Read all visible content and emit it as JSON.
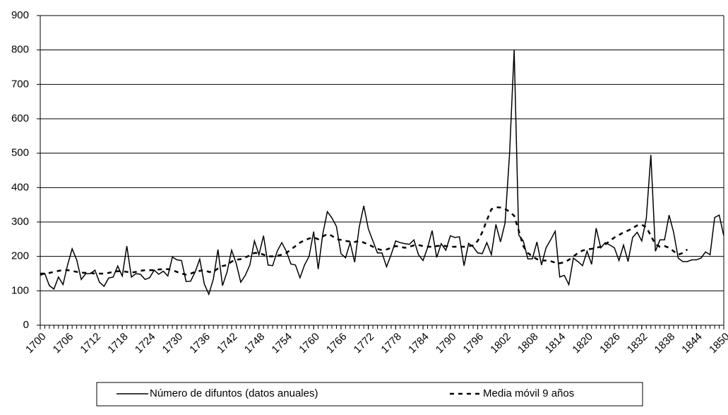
{
  "chart_data": {
    "type": "line",
    "x": [
      1700,
      1701,
      1702,
      1703,
      1704,
      1705,
      1706,
      1707,
      1708,
      1709,
      1710,
      1711,
      1712,
      1713,
      1714,
      1715,
      1716,
      1717,
      1718,
      1719,
      1720,
      1721,
      1722,
      1723,
      1724,
      1725,
      1726,
      1727,
      1728,
      1729,
      1730,
      1731,
      1732,
      1733,
      1734,
      1735,
      1736,
      1737,
      1738,
      1739,
      1740,
      1741,
      1742,
      1743,
      1744,
      1745,
      1746,
      1747,
      1748,
      1749,
      1750,
      1751,
      1752,
      1753,
      1754,
      1755,
      1756,
      1757,
      1758,
      1759,
      1760,
      1761,
      1762,
      1763,
      1764,
      1765,
      1766,
      1767,
      1768,
      1769,
      1770,
      1771,
      1772,
      1773,
      1774,
      1775,
      1776,
      1777,
      1778,
      1779,
      1780,
      1781,
      1782,
      1783,
      1784,
      1785,
      1786,
      1787,
      1788,
      1789,
      1790,
      1791,
      1792,
      1793,
      1794,
      1795,
      1796,
      1797,
      1798,
      1799,
      1800,
      1801,
      1802,
      1803,
      1804,
      1805,
      1806,
      1807,
      1808,
      1809,
      1810,
      1811,
      1812,
      1813,
      1814,
      1815,
      1816,
      1817,
      1818,
      1819,
      1820,
      1821,
      1822,
      1823,
      1824,
      1825,
      1826,
      1827,
      1828,
      1829,
      1830,
      1831,
      1832,
      1833,
      1834,
      1835,
      1836,
      1837,
      1838,
      1839,
      1840,
      1841,
      1842,
      1843,
      1844,
      1845,
      1846,
      1847,
      1848,
      1849,
      1850
    ],
    "series": [
      {
        "name": "Número de difuntos (datos anuales)",
        "color": "#000000",
        "dash": "solid",
        "values": [
          145,
          150,
          115,
          105,
          140,
          118,
          175,
          222,
          190,
          133,
          150,
          150,
          160,
          125,
          113,
          137,
          140,
          172,
          143,
          230,
          140,
          150,
          148,
          133,
          138,
          160,
          148,
          157,
          143,
          198,
          190,
          188,
          127,
          128,
          155,
          192,
          120,
          90,
          135,
          220,
          115,
          155,
          218,
          180,
          125,
          145,
          175,
          245,
          205,
          260,
          175,
          173,
          215,
          240,
          215,
          178,
          175,
          138,
          175,
          200,
          272,
          163,
          265,
          330,
          312,
          287,
          208,
          196,
          240,
          183,
          285,
          347,
          280,
          245,
          210,
          210,
          170,
          205,
          245,
          240,
          237,
          235,
          248,
          205,
          188,
          225,
          275,
          197,
          237,
          218,
          260,
          255,
          257,
          173,
          238,
          228,
          210,
          208,
          240,
          205,
          293,
          242,
          297,
          500,
          800,
          262,
          245,
          193,
          193,
          242,
          175,
          225,
          248,
          273,
          140,
          145,
          118,
          195,
          185,
          173,
          215,
          177,
          282,
          225,
          240,
          233,
          225,
          188,
          233,
          185,
          255,
          270,
          245,
          310,
          495,
          215,
          248,
          248,
          320,
          270,
          195,
          185,
          185,
          190,
          190,
          195,
          213,
          205,
          313,
          320,
          260
        ]
      },
      {
        "name": "Media móvil 9 años",
        "color": "#000000",
        "dash": "dashed",
        "values": [
          150,
          150,
          152,
          155,
          158,
          160,
          160,
          158,
          155,
          153,
          152,
          152,
          150,
          150,
          150,
          152,
          155,
          157,
          157,
          155,
          153,
          155,
          158,
          160,
          160,
          160,
          162,
          163,
          163,
          160,
          155,
          150,
          147,
          150,
          155,
          158,
          160,
          155,
          155,
          165,
          172,
          175,
          185,
          190,
          192,
          197,
          203,
          210,
          210,
          205,
          200,
          200,
          202,
          205,
          210,
          220,
          230,
          240,
          247,
          252,
          255,
          250,
          258,
          265,
          260,
          250,
          248,
          245,
          243,
          242,
          245,
          240,
          235,
          228,
          222,
          218,
          220,
          225,
          230,
          228,
          225,
          228,
          232,
          233,
          230,
          228,
          228,
          230,
          232,
          230,
          228,
          228,
          228,
          228,
          230,
          232,
          245,
          270,
          305,
          337,
          343,
          342,
          338,
          330,
          318,
          275,
          230,
          210,
          200,
          192,
          188,
          188,
          186,
          182,
          180,
          183,
          190,
          200,
          210,
          217,
          220,
          222,
          225,
          228,
          235,
          245,
          255,
          262,
          270,
          275,
          282,
          290,
          292,
          285,
          260,
          235,
          228,
          230,
          225,
          215,
          205,
          210,
          220,
          null,
          null,
          null,
          null,
          null,
          null,
          null,
          null
        ]
      }
    ],
    "xlim": [
      1700,
      1850
    ],
    "xticks": [
      1700,
      1706,
      1712,
      1718,
      1724,
      1730,
      1736,
      1742,
      1748,
      1754,
      1760,
      1766,
      1772,
      1778,
      1784,
      1790,
      1796,
      1802,
      1808,
      1814,
      1820,
      1826,
      1832,
      1838,
      1844,
      1850
    ],
    "ylim": [
      0,
      900
    ],
    "yticks": [
      0,
      100,
      200,
      300,
      400,
      500,
      600,
      700,
      800,
      900
    ],
    "grid": true,
    "legend": "bottom"
  }
}
